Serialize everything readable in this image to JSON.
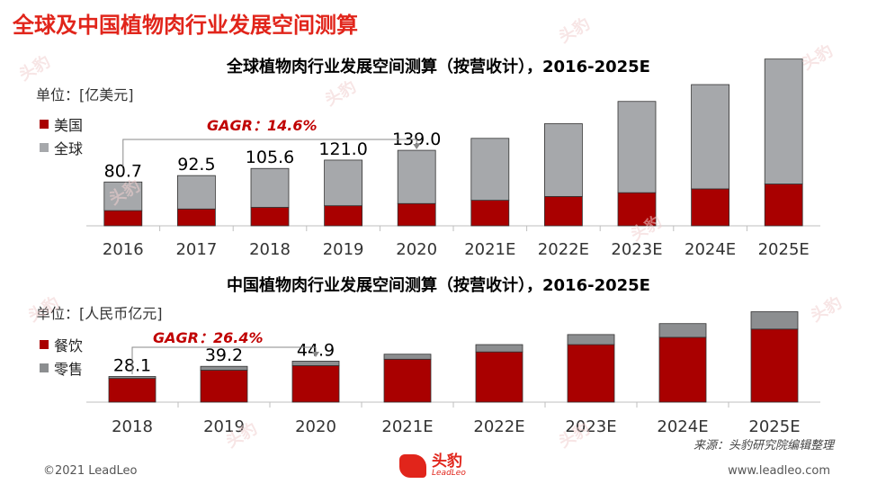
{
  "page_title": "全球及中国植物肉行业发展空间测算",
  "source": "来源：头豹研究院编辑整理",
  "footer_left": "©2021 LeadLeo",
  "footer_right": "www.leadleo.com",
  "logo": {
    "cn": "头豹",
    "en": "LeadLeo"
  },
  "watermark_text": "头豹",
  "colors": {
    "red": "#a90000",
    "gray": "#a6a8ab",
    "accent": "#e1251b"
  },
  "chart_data": [
    {
      "type": "bar",
      "stacked": true,
      "title": "全球植物肉行业发展空间测算（按营收计），2016-2025E",
      "unit": "单位：[亿美元]",
      "cagr": "GAGR：14.6%",
      "categories": [
        "2016",
        "2017",
        "2018",
        "2019",
        "2020",
        "2021E",
        "2022E",
        "2023E",
        "2024E",
        "2025E"
      ],
      "totals_labels": [
        "80.7",
        "92.5",
        "105.6",
        "121.0",
        "139.0"
      ],
      "series": [
        {
          "name": "美国",
          "color": "#a90000",
          "values": [
            28,
            31,
            34,
            37,
            41,
            47,
            54,
            61,
            68,
            77
          ]
        },
        {
          "name": "全球",
          "color": "#a6a8ab",
          "values": [
            52.7,
            61.5,
            71.6,
            84.0,
            98.0,
            114,
            134,
            168,
            192,
            230
          ]
        }
      ],
      "ylim": [
        0,
        320
      ]
    },
    {
      "type": "bar",
      "stacked": true,
      "title": "中国植物肉行业发展空间测算（按营收计），2016-2025E",
      "unit": "单位：[人民币亿元]",
      "cagr": "GAGR：26.4%",
      "categories": [
        "2018",
        "2019",
        "2020",
        "2021E",
        "2022E",
        "2023E",
        "2024E",
        "2025E"
      ],
      "totals_labels": [
        "28.1",
        "39.2",
        "44.9"
      ],
      "series": [
        {
          "name": "餐饮",
          "color": "#a90000",
          "values": [
            26,
            35,
            40,
            47,
            55,
            63,
            71,
            80
          ]
        },
        {
          "name": "零售",
          "color": "#8c8e90",
          "values": [
            2.1,
            4.2,
            4.9,
            5.5,
            8,
            11,
            15,
            19
          ]
        }
      ],
      "ylim": [
        0,
        100
      ]
    }
  ]
}
